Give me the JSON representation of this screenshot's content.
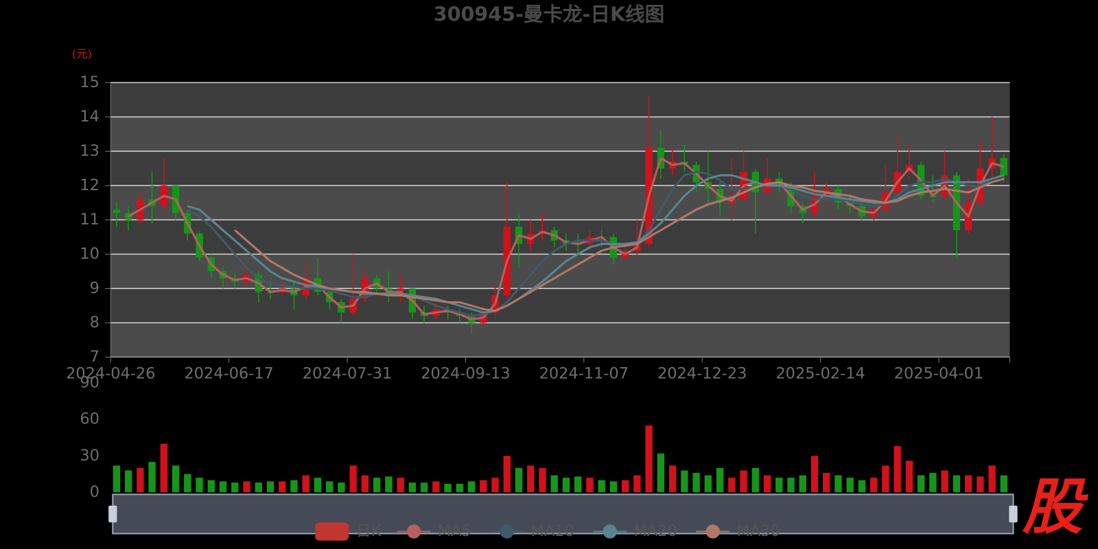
{
  "chart_data": [
    {
      "type": "candlestick",
      "title": "300945-曼卡龙-日K线图",
      "y_axis_label": "(元)",
      "watermark": "股",
      "categories": [
        "2024-04-26",
        null,
        null,
        null,
        null,
        null,
        null,
        null,
        null,
        null,
        "2024-06-17",
        null,
        null,
        null,
        null,
        null,
        null,
        null,
        null,
        null,
        "2024-07-31",
        null,
        null,
        null,
        null,
        null,
        null,
        null,
        null,
        null,
        "2024-09-13",
        null,
        null,
        null,
        null,
        null,
        null,
        null,
        null,
        null,
        "2024-11-07",
        null,
        null,
        null,
        null,
        null,
        null,
        null,
        null,
        null,
        "2024-12-23",
        null,
        null,
        null,
        null,
        null,
        null,
        null,
        null,
        null,
        "2025-02-14",
        null,
        null,
        null,
        null,
        null,
        null,
        null,
        null,
        null,
        "2025-04-01",
        null,
        null,
        null,
        null,
        null
      ],
      "ylim": [
        7,
        15
      ],
      "yticks": [
        7,
        8,
        9,
        10,
        11,
        12,
        13,
        14,
        15
      ],
      "grid": true,
      "up_color": "#d0121b",
      "down_color": "#15961a",
      "series": [
        {
          "name": "日K",
          "type": "candlestick",
          "color": "#c23531",
          "values": [
            [
              11.3,
              11.2,
              10.8,
              11.5
            ],
            [
              11.2,
              11.0,
              10.7,
              11.4
            ],
            [
              11.0,
              11.6,
              10.9,
              11.8
            ],
            [
              11.6,
              11.4,
              10.9,
              12.4
            ],
            [
              11.4,
              12.0,
              11.2,
              12.8
            ],
            [
              12.0,
              11.2,
              11.0,
              12.0
            ],
            [
              11.2,
              10.6,
              10.4,
              11.3
            ],
            [
              10.6,
              9.9,
              9.8,
              10.7
            ],
            [
              9.9,
              9.5,
              9.3,
              10.0
            ],
            [
              9.5,
              9.3,
              9.0,
              9.6
            ],
            [
              9.3,
              9.2,
              9.0,
              9.5
            ],
            [
              9.2,
              9.4,
              9.1,
              9.7
            ],
            [
              9.4,
              8.9,
              8.6,
              9.5
            ],
            [
              8.9,
              8.9,
              8.7,
              9.2
            ],
            [
              8.9,
              9.0,
              8.8,
              9.3
            ],
            [
              9.0,
              8.8,
              8.4,
              9.2
            ],
            [
              8.8,
              9.3,
              8.7,
              9.8
            ],
            [
              9.3,
              8.9,
              8.8,
              9.9
            ],
            [
              8.9,
              8.6,
              8.4,
              9.0
            ],
            [
              8.6,
              8.3,
              8.0,
              8.7
            ],
            [
              8.3,
              8.7,
              8.2,
              10.0
            ],
            [
              8.7,
              9.3,
              8.6,
              9.6
            ],
            [
              9.3,
              9.0,
              8.8,
              9.4
            ],
            [
              9.0,
              8.8,
              8.6,
              9.5
            ],
            [
              8.8,
              9.0,
              8.6,
              9.4
            ],
            [
              9.0,
              8.3,
              8.1,
              9.0
            ],
            [
              8.3,
              8.2,
              8.0,
              8.5
            ],
            [
              8.2,
              8.4,
              8.1,
              8.6
            ],
            [
              8.4,
              8.3,
              8.1,
              8.5
            ],
            [
              8.3,
              8.2,
              8.0,
              8.4
            ],
            [
              8.2,
              8.0,
              7.7,
              8.3
            ],
            [
              8.0,
              8.3,
              7.9,
              8.5
            ],
            [
              8.3,
              8.8,
              8.2,
              9.1
            ],
            [
              8.8,
              10.8,
              8.7,
              12.1
            ],
            [
              10.8,
              10.3,
              9.6,
              11.2
            ],
            [
              10.3,
              10.6,
              10.1,
              11.0
            ],
            [
              10.6,
              10.7,
              10.4,
              11.2
            ],
            [
              10.7,
              10.4,
              10.2,
              10.8
            ],
            [
              10.4,
              10.3,
              10.1,
              10.6
            ],
            [
              10.3,
              10.3,
              10.0,
              10.6
            ],
            [
              10.3,
              10.5,
              10.1,
              10.7
            ],
            [
              10.5,
              10.5,
              10.2,
              10.7
            ],
            [
              10.5,
              9.9,
              9.7,
              10.6
            ],
            [
              9.9,
              10.1,
              9.8,
              10.3
            ],
            [
              10.1,
              10.3,
              9.9,
              11.0
            ],
            [
              10.3,
              13.1,
              10.2,
              14.6
            ],
            [
              13.1,
              12.5,
              12.2,
              13.6
            ],
            [
              12.5,
              12.7,
              12.3,
              13.1
            ],
            [
              12.7,
              12.6,
              12.4,
              13.2
            ],
            [
              12.6,
              12.1,
              11.8,
              12.7
            ],
            [
              12.1,
              11.9,
              11.5,
              13.0
            ],
            [
              11.9,
              11.5,
              11.1,
              12.1
            ],
            [
              11.5,
              11.6,
              11.0,
              12.8
            ],
            [
              11.6,
              12.4,
              11.5,
              13.0
            ],
            [
              12.4,
              11.8,
              10.6,
              12.5
            ],
            [
              11.8,
              12.2,
              11.7,
              12.8
            ],
            [
              12.2,
              12.0,
              11.8,
              12.4
            ],
            [
              12.0,
              11.4,
              11.2,
              12.1
            ],
            [
              11.4,
              11.2,
              10.9,
              11.5
            ],
            [
              11.2,
              11.7,
              11.1,
              12.4
            ],
            [
              11.7,
              11.9,
              11.5,
              12.1
            ],
            [
              11.9,
              11.5,
              11.3,
              12.0
            ],
            [
              11.5,
              11.4,
              11.2,
              11.7
            ],
            [
              11.4,
              11.1,
              11.0,
              11.5
            ],
            [
              11.1,
              11.3,
              11.0,
              11.6
            ],
            [
              11.3,
              11.8,
              11.2,
              12.6
            ],
            [
              11.8,
              12.4,
              11.7,
              13.5
            ],
            [
              12.4,
              12.6,
              12.2,
              13.2
            ],
            [
              12.6,
              11.7,
              11.6,
              12.7
            ],
            [
              11.7,
              11.7,
              11.5,
              12.3
            ],
            [
              11.7,
              12.3,
              11.6,
              13.0
            ],
            [
              12.3,
              10.7,
              9.9,
              12.4
            ],
            [
              10.7,
              11.5,
              10.6,
              12.2
            ],
            [
              11.5,
              12.5,
              11.4,
              13.3
            ],
            [
              12.5,
              12.8,
              12.2,
              14.0
            ],
            [
              12.8,
              12.3,
              12.1,
              12.9
            ]
          ]
        },
        {
          "name": "MA5",
          "type": "line",
          "color": "#b5605e",
          "values": [
            null,
            11.1,
            11.3,
            11.5,
            11.7,
            11.6,
            10.9,
            10.25,
            9.7,
            9.4,
            9.25,
            9.3,
            9.15,
            8.9,
            8.95,
            8.9,
            9.05,
            9.1,
            8.75,
            8.45,
            8.5,
            9.0,
            9.15,
            8.9,
            8.9,
            8.65,
            8.25,
            8.3,
            8.35,
            8.25,
            8.1,
            8.15,
            8.55,
            9.8,
            10.55,
            10.45,
            10.65,
            10.55,
            10.35,
            10.3,
            10.4,
            10.5,
            10.2,
            10.0,
            10.2,
            11.7,
            12.8,
            12.6,
            12.65,
            12.35,
            12.0,
            11.7,
            11.55,
            12.0,
            12.1,
            12.0,
            12.1,
            11.7,
            11.3,
            11.45,
            11.8,
            11.7,
            11.45,
            11.25,
            11.2,
            11.55,
            12.1,
            12.5,
            12.15,
            11.7,
            12.0,
            11.5,
            11.1,
            12.0,
            12.65,
            12.55
          ]
        },
        {
          "name": "MA10",
          "type": "line",
          "color": "#3f5a6a",
          "values": [
            null,
            null,
            null,
            null,
            null,
            null,
            11.3,
            11.1,
            10.8,
            10.4,
            10.0,
            9.6,
            9.3,
            9.15,
            9.1,
            9.05,
            9.0,
            9.0,
            8.95,
            8.85,
            8.75,
            8.75,
            8.85,
            8.85,
            8.85,
            8.8,
            8.65,
            8.5,
            8.4,
            8.3,
            8.2,
            8.25,
            8.35,
            8.6,
            9.0,
            9.4,
            9.8,
            10.1,
            10.3,
            10.4,
            10.4,
            10.4,
            10.3,
            10.25,
            10.3,
            10.7,
            11.3,
            11.9,
            12.3,
            12.4,
            12.35,
            12.15,
            11.9,
            11.9,
            11.95,
            12.0,
            12.0,
            11.9,
            11.7,
            11.6,
            11.6,
            11.6,
            11.55,
            11.45,
            11.4,
            11.45,
            11.7,
            12.0,
            12.1,
            12.1,
            12.2,
            12.1,
            12.0,
            12.0,
            12.2,
            12.3
          ]
        },
        {
          "name": "MA20",
          "type": "line",
          "color": "#58858f",
          "values": [
            null,
            null,
            null,
            null,
            null,
            null,
            11.4,
            11.3,
            11.0,
            10.7,
            10.4,
            10.1,
            9.8,
            9.5,
            9.3,
            9.2,
            9.1,
            9.05,
            9.0,
            8.95,
            8.9,
            8.85,
            8.85,
            8.85,
            8.85,
            8.8,
            8.75,
            8.7,
            8.6,
            8.5,
            8.4,
            8.3,
            8.35,
            8.5,
            8.7,
            8.95,
            9.2,
            9.5,
            9.8,
            10.0,
            10.2,
            10.3,
            10.3,
            10.3,
            10.35,
            10.6,
            10.9,
            11.3,
            11.7,
            12.0,
            12.2,
            12.3,
            12.3,
            12.2,
            12.1,
            12.0,
            12.0,
            11.95,
            11.85,
            11.75,
            11.7,
            11.65,
            11.6,
            11.55,
            11.5,
            11.5,
            11.6,
            11.8,
            11.9,
            12.0,
            12.1,
            12.1,
            12.1,
            12.1,
            12.2,
            12.3
          ]
        },
        {
          "name": "MA30",
          "type": "line",
          "color": "#b07868",
          "values": [
            null,
            null,
            null,
            null,
            null,
            null,
            null,
            null,
            null,
            null,
            10.7,
            10.4,
            10.1,
            9.8,
            9.6,
            9.4,
            9.25,
            9.1,
            9.0,
            8.95,
            8.9,
            8.9,
            8.85,
            8.8,
            8.8,
            8.75,
            8.7,
            8.65,
            8.6,
            8.6,
            8.5,
            8.4,
            8.35,
            8.5,
            8.7,
            8.9,
            9.1,
            9.3,
            9.5,
            9.7,
            9.9,
            10.1,
            10.2,
            10.25,
            10.3,
            10.5,
            10.7,
            10.9,
            11.1,
            11.3,
            11.45,
            11.55,
            11.65,
            11.8,
            11.95,
            12.05,
            12.1,
            12.0,
            11.95,
            11.85,
            11.8,
            11.75,
            11.7,
            11.6,
            11.55,
            11.5,
            11.55,
            11.7,
            11.8,
            11.85,
            11.9,
            11.85,
            11.8,
            11.95,
            12.1,
            12.2
          ]
        }
      ]
    },
    {
      "type": "bar",
      "values": [
        22,
        18,
        20,
        25,
        40,
        22,
        15,
        12,
        10,
        9,
        8,
        9,
        8,
        9,
        9,
        10,
        14,
        12,
        9,
        8,
        22,
        14,
        12,
        13,
        12,
        8,
        8,
        9,
        7,
        7,
        9,
        10,
        12,
        30,
        20,
        22,
        20,
        14,
        12,
        13,
        12,
        10,
        9,
        10,
        14,
        55,
        32,
        22,
        18,
        16,
        14,
        20,
        12,
        18,
        20,
        14,
        12,
        12,
        14,
        30,
        16,
        14,
        12,
        10,
        12,
        22,
        38,
        26,
        14,
        16,
        18,
        14,
        14,
        13,
        22,
        14
      ],
      "ylim": [
        0,
        90
      ],
      "yticks": [
        0,
        30,
        60,
        90
      ]
    }
  ]
}
